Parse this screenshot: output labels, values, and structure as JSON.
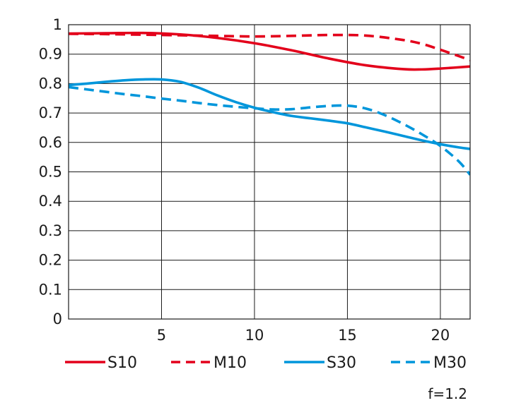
{
  "chart_data": {
    "type": "line",
    "title": "",
    "xlabel": "",
    "ylabel": "",
    "xlim": [
      0,
      21.6
    ],
    "ylim": [
      0,
      1
    ],
    "x_ticks": [
      5,
      10,
      15,
      20
    ],
    "x_tick_labels": [
      "5",
      "10",
      "15",
      "20"
    ],
    "y_ticks": [
      0,
      0.1,
      0.2,
      0.3,
      0.4,
      0.5,
      0.6,
      0.7,
      0.8,
      0.9,
      1
    ],
    "y_tick_labels": [
      "0",
      "0.1",
      "0.2",
      "0.3",
      "0.4",
      "0.5",
      "0.6",
      "0.7",
      "0.8",
      "0.9",
      "1"
    ],
    "grid": true,
    "legend_position": "bottom",
    "annotation": "f=1.2",
    "series": [
      {
        "name": "S10",
        "color": "#e3001b",
        "dash": "solid",
        "x": [
          0,
          2,
          4,
          6,
          8,
          10,
          12,
          14,
          16,
          18,
          19,
          20,
          21.6
        ],
        "y": [
          0.97,
          0.971,
          0.972,
          0.967,
          0.955,
          0.937,
          0.913,
          0.885,
          0.862,
          0.849,
          0.848,
          0.851,
          0.858
        ]
      },
      {
        "name": "M10",
        "color": "#e3001b",
        "dash": "dashed",
        "x": [
          0,
          2,
          4,
          6,
          8,
          10,
          12,
          14,
          16,
          18,
          19,
          20,
          21.6
        ],
        "y": [
          0.969,
          0.968,
          0.966,
          0.964,
          0.962,
          0.96,
          0.962,
          0.965,
          0.963,
          0.948,
          0.935,
          0.915,
          0.88
        ]
      },
      {
        "name": "S30",
        "color": "#0096db",
        "dash": "solid",
        "x": [
          0,
          1,
          2,
          3,
          4,
          5,
          6,
          7,
          8,
          9,
          10,
          11,
          12,
          13,
          14,
          15,
          16,
          17,
          18,
          19,
          20,
          21,
          21.6
        ],
        "y": [
          0.795,
          0.8,
          0.806,
          0.811,
          0.814,
          0.814,
          0.806,
          0.786,
          0.76,
          0.737,
          0.718,
          0.703,
          0.69,
          0.682,
          0.674,
          0.665,
          0.651,
          0.637,
          0.622,
          0.607,
          0.594,
          0.583,
          0.578
        ]
      },
      {
        "name": "M30",
        "color": "#0096db",
        "dash": "dashed",
        "x": [
          0,
          1,
          2,
          3,
          4,
          5,
          6,
          7,
          8,
          9,
          10,
          11,
          12,
          13,
          14,
          15,
          16,
          17,
          18,
          19,
          20,
          21,
          21.6
        ],
        "y": [
          0.788,
          0.78,
          0.772,
          0.764,
          0.757,
          0.749,
          0.742,
          0.734,
          0.727,
          0.721,
          0.716,
          0.712,
          0.713,
          0.719,
          0.724,
          0.725,
          0.715,
          0.693,
          0.663,
          0.628,
          0.588,
          0.535,
          0.49
        ]
      }
    ]
  }
}
